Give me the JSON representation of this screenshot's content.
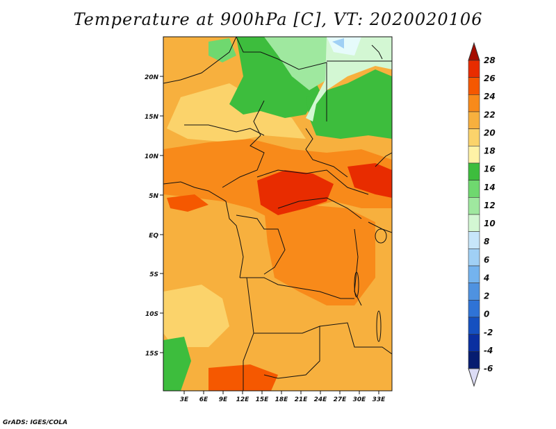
{
  "title": "Temperature at 900hPa [C], VT: 2020020106",
  "footer": "GrADS: IGES/COLA",
  "map": {
    "lat_ticks": [
      "20N",
      "15N",
      "10N",
      "5N",
      "EQ",
      "5S",
      "10S",
      "15S"
    ],
    "lon_ticks": [
      "3E",
      "6E",
      "9E",
      "12E",
      "15E",
      "18E",
      "21E",
      "24E",
      "27E",
      "30E",
      "33E"
    ]
  },
  "colorbar": {
    "labels": [
      "28",
      "26",
      "24",
      "22",
      "20",
      "18",
      "16",
      "14",
      "12",
      "10",
      "8",
      "6",
      "4",
      "2",
      "0",
      "-2",
      "-4",
      "-6"
    ],
    "colors": [
      "#a50c00",
      "#e82c00",
      "#f55800",
      "#f88a1a",
      "#f7b03e",
      "#fbd36b",
      "#fff2a6",
      "#3dbd3d",
      "#6fd86f",
      "#9fe89f",
      "#d3f7d3",
      "#c7e6fa",
      "#a0d0f5",
      "#74b3ee",
      "#4f92e0",
      "#2f73d6",
      "#1550c0",
      "#0a2fa0",
      "#061c70",
      "#dcdcf5"
    ]
  }
}
